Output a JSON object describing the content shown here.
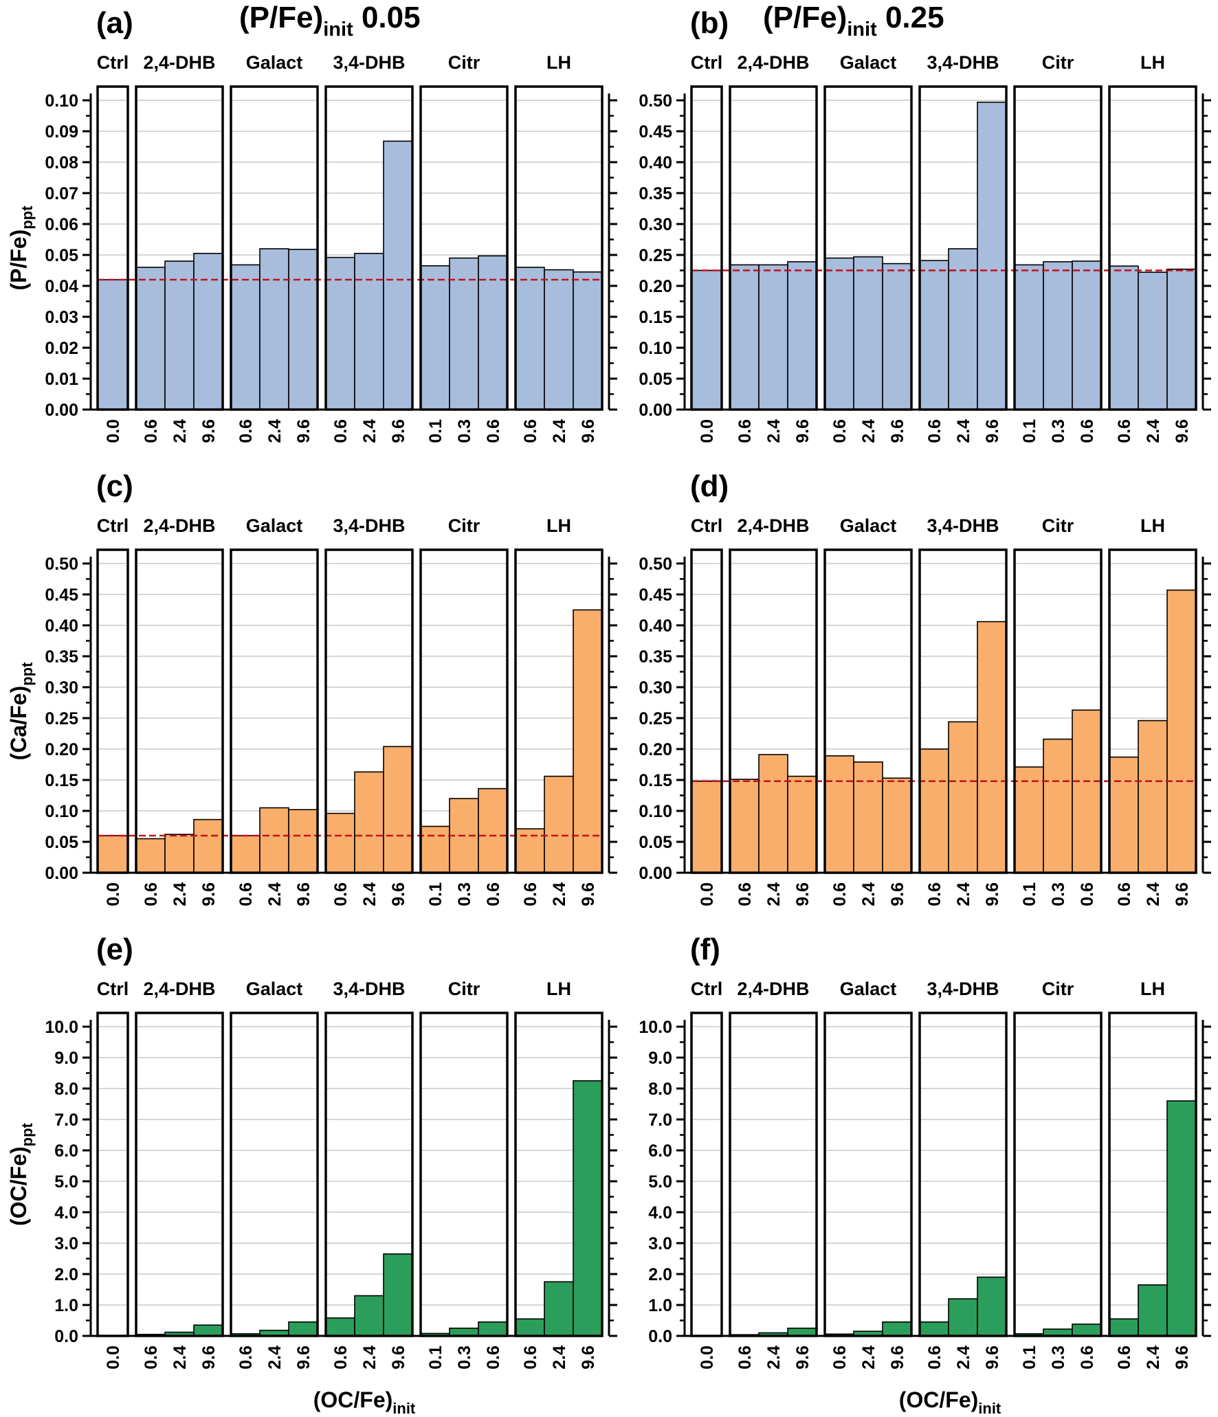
{
  "conditions": [
    {
      "panel": "(a)",
      "title_main": "(P/Fe)",
      "title_sub": "init",
      "title_value": " 0.05"
    },
    {
      "panel": "(b)",
      "title_main": "(P/Fe)",
      "title_sub": "init",
      "title_value": " 0.25"
    }
  ],
  "x_axis_label": {
    "main": "(OC/Fe)",
    "sub": "init"
  },
  "colors": {
    "P": "#a8bcdc",
    "Ca": "#f9ae6b",
    "OC": "#2c9e5b",
    "reference_line": "#c0121e"
  },
  "chart_data": [
    {
      "panel": "(a)",
      "type": "bar",
      "color_key": "P",
      "ylabel": {
        "main": "(P/Fe)",
        "sub": "ppt"
      },
      "ylim": [
        0,
        0.1
      ],
      "yticks": [
        "0.00",
        "0.01",
        "0.02",
        "0.03",
        "0.04",
        "0.05",
        "0.06",
        "0.07",
        "0.08",
        "0.09",
        "0.10"
      ],
      "reference": 0.042,
      "grid": true,
      "groups": [
        {
          "name": "Ctrl",
          "x": [
            "0.0"
          ],
          "values": [
            0.042
          ]
        },
        {
          "name": "2,4-DHB",
          "x": [
            "0.6",
            "2.4",
            "9.6"
          ],
          "values": [
            0.046,
            0.048,
            0.0505
          ]
        },
        {
          "name": "Galact",
          "x": [
            "0.6",
            "2.4",
            "9.6"
          ],
          "values": [
            0.0468,
            0.052,
            0.0518
          ]
        },
        {
          "name": "3,4-DHB",
          "x": [
            "0.6",
            "2.4",
            "9.6"
          ],
          "values": [
            0.0492,
            0.0505,
            0.0868
          ]
        },
        {
          "name": "Citr",
          "x": [
            "0.1",
            "0.3",
            "0.6"
          ],
          "values": [
            0.0465,
            0.049,
            0.0497
          ]
        },
        {
          "name": "LH",
          "x": [
            "0.6",
            "2.4",
            "9.6"
          ],
          "values": [
            0.046,
            0.0452,
            0.0445
          ]
        }
      ]
    },
    {
      "panel": "(b)",
      "type": "bar",
      "color_key": "P",
      "ylabel": {
        "main": "",
        "sub": ""
      },
      "ylim": [
        0,
        0.5
      ],
      "yticks": [
        "0.00",
        "0.05",
        "0.10",
        "0.15",
        "0.20",
        "0.25",
        "0.30",
        "0.35",
        "0.40",
        "0.45",
        "0.50"
      ],
      "reference": 0.225,
      "grid": true,
      "groups": [
        {
          "name": "Ctrl",
          "x": [
            "0.0"
          ],
          "values": [
            0.225
          ]
        },
        {
          "name": "2,4-DHB",
          "x": [
            "0.6",
            "2.4",
            "9.6"
          ],
          "values": [
            0.234,
            0.234,
            0.239
          ]
        },
        {
          "name": "Galact",
          "x": [
            "0.6",
            "2.4",
            "9.6"
          ],
          "values": [
            0.245,
            0.247,
            0.236
          ]
        },
        {
          "name": "3,4-DHB",
          "x": [
            "0.6",
            "2.4",
            "9.6"
          ],
          "values": [
            0.241,
            0.26,
            0.497
          ]
        },
        {
          "name": "Citr",
          "x": [
            "0.1",
            "0.3",
            "0.6"
          ],
          "values": [
            0.234,
            0.239,
            0.24
          ]
        },
        {
          "name": "LH",
          "x": [
            "0.6",
            "2.4",
            "9.6"
          ],
          "values": [
            0.232,
            0.222,
            0.227
          ]
        }
      ]
    },
    {
      "panel": "(c)",
      "type": "bar",
      "color_key": "Ca",
      "ylabel": {
        "main": "(Ca/Fe)",
        "sub": "ppt"
      },
      "ylim": [
        0,
        0.5
      ],
      "yticks": [
        "0.00",
        "0.05",
        "0.10",
        "0.15",
        "0.20",
        "0.25",
        "0.30",
        "0.35",
        "0.40",
        "0.45",
        "0.50"
      ],
      "reference": 0.06,
      "grid": true,
      "groups": [
        {
          "name": "Ctrl",
          "x": [
            "0.0"
          ],
          "values": [
            0.06
          ]
        },
        {
          "name": "2,4-DHB",
          "x": [
            "0.6",
            "2.4",
            "9.6"
          ],
          "values": [
            0.055,
            0.062,
            0.086
          ]
        },
        {
          "name": "Galact",
          "x": [
            "0.6",
            "2.4",
            "9.6"
          ],
          "values": [
            0.06,
            0.105,
            0.102
          ]
        },
        {
          "name": "3,4-DHB",
          "x": [
            "0.6",
            "2.4",
            "9.6"
          ],
          "values": [
            0.096,
            0.163,
            0.204
          ]
        },
        {
          "name": "Citr",
          "x": [
            "0.1",
            "0.3",
            "0.6"
          ],
          "values": [
            0.075,
            0.12,
            0.136
          ]
        },
        {
          "name": "LH",
          "x": [
            "0.6",
            "2.4",
            "9.6"
          ],
          "values": [
            0.071,
            0.156,
            0.425
          ]
        }
      ]
    },
    {
      "panel": "(d)",
      "type": "bar",
      "color_key": "Ca",
      "ylabel": {
        "main": "",
        "sub": ""
      },
      "ylim": [
        0,
        0.5
      ],
      "yticks": [
        "0.00",
        "0.05",
        "0.10",
        "0.15",
        "0.20",
        "0.25",
        "0.30",
        "0.35",
        "0.40",
        "0.45",
        "0.50"
      ],
      "reference": 0.148,
      "grid": true,
      "groups": [
        {
          "name": "Ctrl",
          "x": [
            "0.0"
          ],
          "values": [
            0.148
          ]
        },
        {
          "name": "2,4-DHB",
          "x": [
            "0.6",
            "2.4",
            "9.6"
          ],
          "values": [
            0.151,
            0.191,
            0.156
          ]
        },
        {
          "name": "Galact",
          "x": [
            "0.6",
            "2.4",
            "9.6"
          ],
          "values": [
            0.189,
            0.179,
            0.153
          ]
        },
        {
          "name": "3,4-DHB",
          "x": [
            "0.6",
            "2.4",
            "9.6"
          ],
          "values": [
            0.2,
            0.244,
            0.406
          ]
        },
        {
          "name": "Citr",
          "x": [
            "0.1",
            "0.3",
            "0.6"
          ],
          "values": [
            0.171,
            0.216,
            0.263
          ]
        },
        {
          "name": "LH",
          "x": [
            "0.6",
            "2.4",
            "9.6"
          ],
          "values": [
            0.187,
            0.246,
            0.457
          ]
        }
      ]
    },
    {
      "panel": "(e)",
      "type": "bar",
      "color_key": "OC",
      "ylabel": {
        "main": "(OC/Fe)",
        "sub": "ppt"
      },
      "ylim": [
        0,
        10.0
      ],
      "yticks": [
        "0.0",
        "1.0",
        "2.0",
        "3.0",
        "4.0",
        "5.0",
        "6.0",
        "7.0",
        "8.0",
        "9.0",
        "10.0"
      ],
      "reference": null,
      "grid": true,
      "groups": [
        {
          "name": "Ctrl",
          "x": [
            "0.0"
          ],
          "values": [
            0.0
          ]
        },
        {
          "name": "2,4-DHB",
          "x": [
            "0.6",
            "2.4",
            "9.6"
          ],
          "values": [
            0.05,
            0.12,
            0.35
          ]
        },
        {
          "name": "Galact",
          "x": [
            "0.6",
            "2.4",
            "9.6"
          ],
          "values": [
            0.07,
            0.18,
            0.45
          ]
        },
        {
          "name": "3,4-DHB",
          "x": [
            "0.6",
            "2.4",
            "9.6"
          ],
          "values": [
            0.58,
            1.3,
            2.65
          ]
        },
        {
          "name": "Citr",
          "x": [
            "0.1",
            "0.3",
            "0.6"
          ],
          "values": [
            0.08,
            0.25,
            0.45
          ]
        },
        {
          "name": "LH",
          "x": [
            "0.6",
            "2.4",
            "9.6"
          ],
          "values": [
            0.55,
            1.75,
            8.25
          ]
        }
      ]
    },
    {
      "panel": "(f)",
      "type": "bar",
      "color_key": "OC",
      "ylabel": {
        "main": "",
        "sub": ""
      },
      "ylim": [
        0,
        10.0
      ],
      "yticks": [
        "0.0",
        "1.0",
        "2.0",
        "3.0",
        "4.0",
        "5.0",
        "6.0",
        "7.0",
        "8.0",
        "9.0",
        "10.0"
      ],
      "reference": null,
      "grid": true,
      "groups": [
        {
          "name": "Ctrl",
          "x": [
            "0.0"
          ],
          "values": [
            0.0
          ]
        },
        {
          "name": "2,4-DHB",
          "x": [
            "0.6",
            "2.4",
            "9.6"
          ],
          "values": [
            0.04,
            0.1,
            0.25
          ]
        },
        {
          "name": "Galact",
          "x": [
            "0.6",
            "2.4",
            "9.6"
          ],
          "values": [
            0.06,
            0.15,
            0.45
          ]
        },
        {
          "name": "3,4-DHB",
          "x": [
            "0.6",
            "2.4",
            "9.6"
          ],
          "values": [
            0.45,
            1.2,
            1.9
          ]
        },
        {
          "name": "Citr",
          "x": [
            "0.1",
            "0.3",
            "0.6"
          ],
          "values": [
            0.07,
            0.22,
            0.38
          ]
        },
        {
          "name": "LH",
          "x": [
            "0.6",
            "2.4",
            "9.6"
          ],
          "values": [
            0.55,
            1.65,
            7.6
          ]
        }
      ]
    }
  ]
}
